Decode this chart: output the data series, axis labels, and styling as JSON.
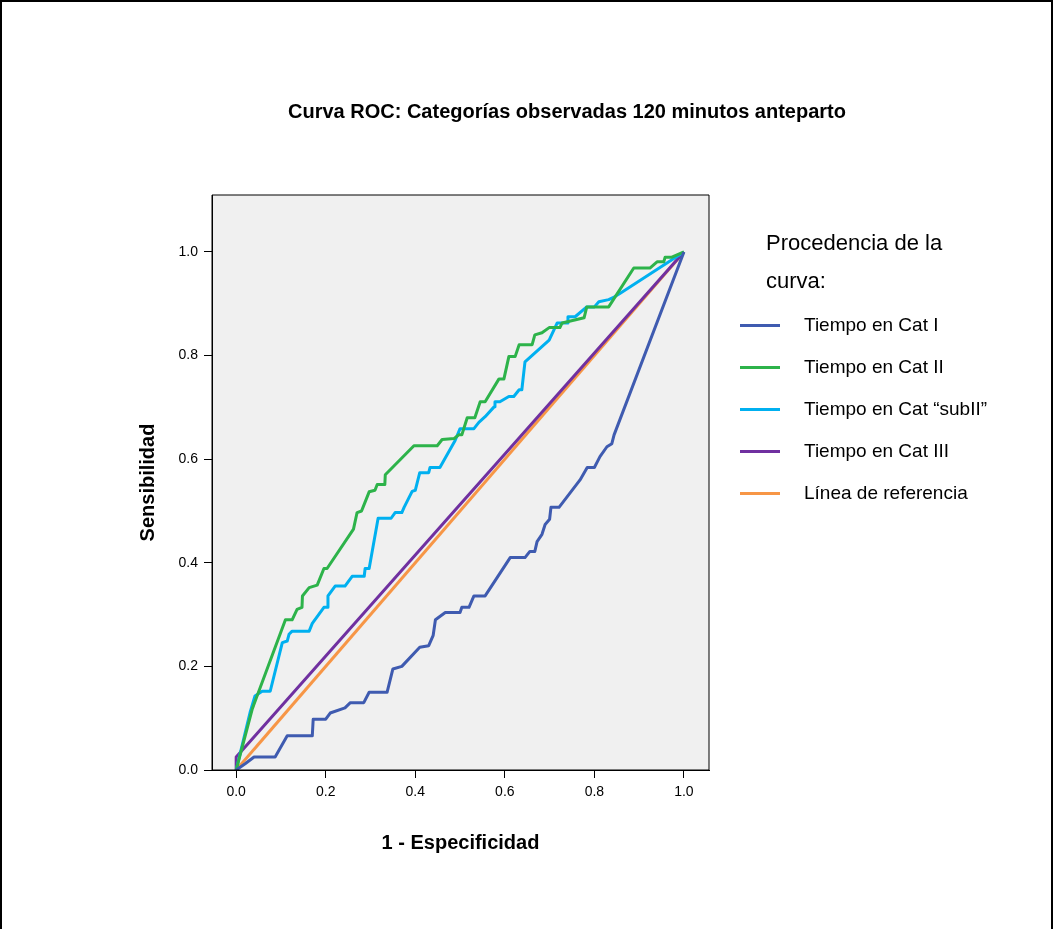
{
  "chart_data": {
    "type": "line",
    "title": "Curva ROC: Categorías observadas 120 minutos anteparto",
    "xlabel": "1 - Especificidad",
    "ylabel": "Sensibilidad",
    "legend_title": "Procedencia de la curva:",
    "legend": "right",
    "marker": "none",
    "xlim": [
      -0.054,
      1.056
    ],
    "ylim": [
      0,
      1.11
    ],
    "xticks": [
      {
        "value": 0,
        "label": "0.0"
      },
      {
        "value": 0.2,
        "label": "0.2"
      },
      {
        "value": 0.4,
        "label": "0.4"
      },
      {
        "value": 0.6,
        "label": "0.6"
      },
      {
        "value": 0.8,
        "label": "0.8"
      },
      {
        "value": 1,
        "label": "1.0"
      }
    ],
    "yticks": [
      {
        "value": 0,
        "label": "0.0"
      },
      {
        "value": 0.2,
        "label": "0.2"
      },
      {
        "value": 0.4,
        "label": "0.4"
      },
      {
        "value": 0.6,
        "label": "0.6"
      },
      {
        "value": 0.8,
        "label": "0.8"
      },
      {
        "value": 1,
        "label": "1.0"
      }
    ],
    "series": [
      {
        "name": "Tiempo en Cat I",
        "color": "#3f5bb0",
        "x": [
          0,
          0.02,
          0.04,
          0.087,
          0.114,
          0.17,
          0.172,
          0.2,
          0.21,
          0.243,
          0.255,
          0.285,
          0.297,
          0.337,
          0.35,
          0.37,
          0.41,
          0.43,
          0.44,
          0.445,
          0.467,
          0.5,
          0.504,
          0.52,
          0.531,
          0.556,
          0.612,
          0.645,
          0.656,
          0.667,
          0.672,
          0.683,
          0.69,
          0.7,
          0.703,
          0.721,
          0.768,
          0.784,
          0.8,
          0.8125,
          0.828,
          0.839,
          0.844,
          1
        ],
        "values": [
          0,
          0.012,
          0.025,
          0.025,
          0.066,
          0.066,
          0.098,
          0.098,
          0.11,
          0.12,
          0.13,
          0.13,
          0.15,
          0.15,
          0.195,
          0.2,
          0.237,
          0.24,
          0.26,
          0.29,
          0.304,
          0.304,
          0.314,
          0.314,
          0.336,
          0.336,
          0.41,
          0.41,
          0.422,
          0.422,
          0.441,
          0.455,
          0.474,
          0.484,
          0.507,
          0.507,
          0.56,
          0.584,
          0.584,
          0.605,
          0.624,
          0.63,
          0.647,
          1
        ]
      },
      {
        "name": "Tiempo en Cat II",
        "color": "#2db34a",
        "x": [
          0,
          0.036,
          0.11,
          0.125,
          0.136,
          0.147,
          0.148,
          0.163,
          0.181,
          0.196,
          0.203,
          0.262,
          0.27,
          0.28,
          0.297,
          0.31,
          0.315,
          0.332,
          0.333,
          0.397,
          0.449,
          0.46,
          0.487,
          0.497,
          0.504,
          0.516,
          0.533,
          0.545,
          0.556,
          0.587,
          0.598,
          0.609,
          0.623,
          0.632,
          0.661,
          0.667,
          0.683,
          0.699,
          0.723,
          0.728,
          0.777,
          0.783,
          0.832,
          0.888,
          0.924,
          0.94,
          0.955,
          0.958,
          0.973,
          1
        ],
        "values": [
          0,
          0.118,
          0.29,
          0.29,
          0.31,
          0.314,
          0.336,
          0.352,
          0.357,
          0.389,
          0.389,
          0.465,
          0.497,
          0.5,
          0.537,
          0.54,
          0.551,
          0.551,
          0.57,
          0.626,
          0.626,
          0.638,
          0.64,
          0.647,
          0.647,
          0.68,
          0.68,
          0.711,
          0.711,
          0.755,
          0.755,
          0.798,
          0.798,
          0.821,
          0.821,
          0.84,
          0.844,
          0.854,
          0.854,
          0.863,
          0.873,
          0.894,
          0.894,
          0.969,
          0.969,
          0.981,
          0.981,
          0.99,
          0.99,
          1
        ]
      },
      {
        "name": "Tiempo en Cat “subII”",
        "color": "#00b0f0",
        "x": [
          0,
          0.031,
          0.042,
          0.058,
          0.076,
          0.103,
          0.114,
          0.118,
          0.125,
          0.163,
          0.17,
          0.196,
          0.203,
          0.205,
          0.221,
          0.243,
          0.259,
          0.286,
          0.288,
          0.297,
          0.317,
          0.346,
          0.355,
          0.37,
          0.375,
          0.393,
          0.4,
          0.41,
          0.43,
          0.433,
          0.455,
          0.489,
          0.5,
          0.531,
          0.542,
          0.556,
          0.576,
          0.578,
          0.589,
          0.609,
          0.62,
          0.632,
          0.638,
          0.645,
          0.699,
          0.717,
          0.739,
          0.741,
          0.757,
          0.783,
          0.8,
          0.81,
          0.832,
          0.844,
          0.857,
          1
        ],
        "values": [
          0,
          0.111,
          0.143,
          0.152,
          0.152,
          0.246,
          0.249,
          0.262,
          0.268,
          0.268,
          0.283,
          0.314,
          0.314,
          0.336,
          0.355,
          0.355,
          0.374,
          0.374,
          0.389,
          0.389,
          0.486,
          0.486,
          0.497,
          0.497,
          0.507,
          0.538,
          0.54,
          0.574,
          0.574,
          0.584,
          0.584,
          0.636,
          0.659,
          0.659,
          0.671,
          0.682,
          0.701,
          0.711,
          0.711,
          0.721,
          0.721,
          0.734,
          0.734,
          0.788,
          0.83,
          0.863,
          0.863,
          0.875,
          0.875,
          0.894,
          0.894,
          0.904,
          0.908,
          0.913,
          0.92,
          1
        ]
      },
      {
        "name": "Tiempo en Cat III",
        "color": "#7030a0",
        "x": [
          0,
          0,
          1
        ],
        "values": [
          0,
          0.025,
          1
        ]
      },
      {
        "name": "Línea de referencia",
        "color": "#f79646",
        "x": [
          0,
          1
        ],
        "values": [
          0,
          1
        ]
      }
    ]
  }
}
